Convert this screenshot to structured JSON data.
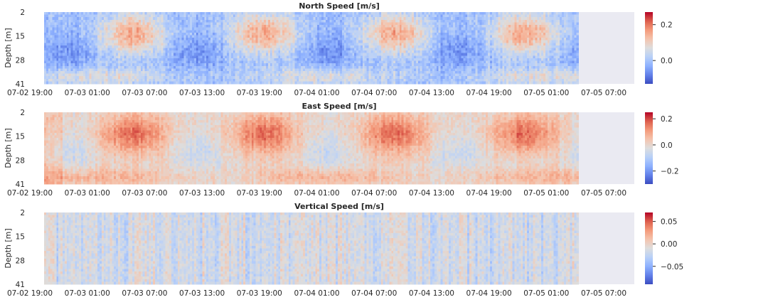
{
  "figure": {
    "x_ticks": [
      "07-02 19:00",
      "07-03 01:00",
      "07-03 07:00",
      "07-03 13:00",
      "07-03 19:00",
      "07-04 01:00",
      "07-04 07:00",
      "07-04 13:00",
      "07-04 19:00",
      "07-05 01:00",
      "07-05 07:00"
    ],
    "y_label": "Depth [m]",
    "y_ticks": [
      "2",
      "15",
      "28",
      "41"
    ]
  },
  "chart_data": [
    {
      "type": "heatmap",
      "title": "North Speed [m/s]",
      "xlabel": "",
      "ylabel": "Depth [m]",
      "x_tick_labels": [
        "07-02 19:00",
        "07-03 01:00",
        "07-03 07:00",
        "07-03 13:00",
        "07-03 19:00",
        "07-04 01:00",
        "07-04 07:00",
        "07-04 13:00",
        "07-04 19:00",
        "07-05 01:00",
        "07-05 07:00"
      ],
      "y_tick_labels": [
        "2",
        "15",
        "28",
        "41"
      ],
      "colormap": "coolwarm",
      "color_range": [
        -0.13,
        0.27
      ],
      "colorbar_ticks": [
        {
          "value": 0.2,
          "label": "0.2"
        },
        {
          "value": 0.0,
          "label": "0.0"
        }
      ],
      "data_end_fraction": 0.905,
      "grid": false,
      "description_values": {
        "positive_blob_centers_hours": [
          15,
          37,
          59,
          81
        ],
        "blob_amplitude": 0.16,
        "near_bottom_positive": 0.08
      }
    },
    {
      "type": "heatmap",
      "title": "East Speed [m/s]",
      "xlabel": "",
      "ylabel": "Depth [m]",
      "x_tick_labels": [
        "07-02 19:00",
        "07-03 01:00",
        "07-03 07:00",
        "07-03 13:00",
        "07-03 19:00",
        "07-04 01:00",
        "07-04 07:00",
        "07-04 13:00",
        "07-04 19:00",
        "07-05 01:00",
        "07-05 07:00"
      ],
      "y_tick_labels": [
        "2",
        "15",
        "28",
        "41"
      ],
      "colormap": "coolwarm",
      "color_range": [
        -0.3,
        0.25
      ],
      "colorbar_ticks": [
        {
          "value": 0.2,
          "label": "0.2"
        },
        {
          "value": 0.0,
          "label": "0.0"
        },
        {
          "value": -0.2,
          "label": "−0.2"
        }
      ],
      "data_end_fraction": 0.905,
      "grid": false,
      "description_values": {
        "positive_blob_centers_hours": [
          15,
          37,
          59,
          81
        ],
        "blob_amplitude": 0.17,
        "near_bottom_positive": 0.08
      }
    },
    {
      "type": "heatmap",
      "title": "Vertical Speed [m/s]",
      "xlabel": "",
      "ylabel": "Depth [m]",
      "x_tick_labels": [
        "07-02 19:00",
        "07-03 01:00",
        "07-03 07:00",
        "07-03 13:00",
        "07-03 19:00",
        "07-04 01:00",
        "07-04 07:00",
        "07-04 13:00",
        "07-04 19:00",
        "07-05 01:00",
        "07-05 07:00"
      ],
      "y_tick_labels": [
        "2",
        "15",
        "28",
        "41"
      ],
      "colormap": "coolwarm",
      "color_range": [
        -0.09,
        0.07
      ],
      "colorbar_ticks": [
        {
          "value": 0.05,
          "label": "0.05"
        },
        {
          "value": 0.0,
          "label": "0.00"
        },
        {
          "value": -0.05,
          "label": "−0.05"
        }
      ],
      "data_end_fraction": 0.905,
      "grid": false,
      "description_values": {
        "dominant_sign": "negative",
        "typical_value": -0.015
      }
    }
  ]
}
